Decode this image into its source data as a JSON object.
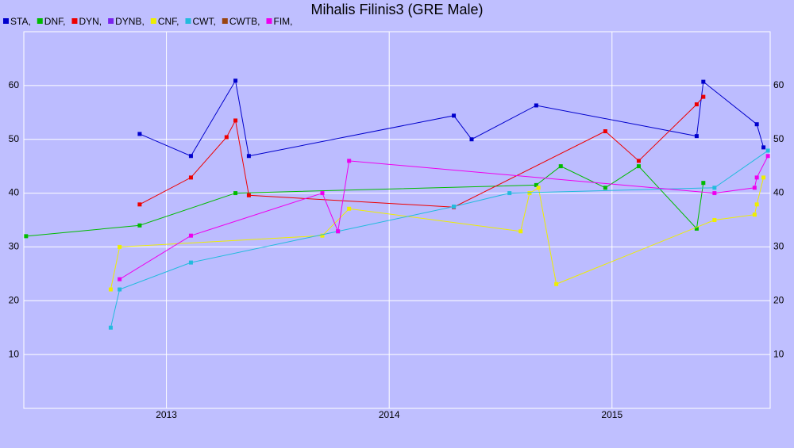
{
  "chart_data": {
    "type": "line",
    "title": "Mihalis Filinis3 (GRE Male)",
    "xlim": [
      2012.36,
      2015.71
    ],
    "xticks": [
      2013,
      2014,
      2015
    ],
    "ylim": [
      0,
      70
    ],
    "yticks": [
      10,
      20,
      30,
      40,
      50,
      60
    ],
    "grid": true,
    "series": [
      {
        "name": "STA,",
        "color": "#0000cc",
        "x": [
          2012.88,
          2013.11,
          2013.31,
          2013.37,
          2014.29,
          2014.37,
          2014.66,
          2015.38,
          2015.41,
          2015.65,
          2015.68
        ],
        "values": [
          51.0,
          46.9,
          60.9,
          46.9,
          54.4,
          50.0,
          56.3,
          50.6,
          60.7,
          52.8,
          48.5
        ]
      },
      {
        "name": "DNF,",
        "color": "#00bb00",
        "x": [
          2012.37,
          2012.88,
          2013.31,
          2014.66,
          2014.77,
          2014.97,
          2015.12,
          2015.38,
          2015.41
        ],
        "values": [
          32.0,
          34.0,
          40.0,
          41.5,
          45.0,
          41.0,
          45.0,
          33.4,
          41.9
        ]
      },
      {
        "name": "DYN,",
        "color": "#ee0000",
        "x": [
          2012.88,
          2013.11,
          2013.27,
          2013.31,
          2013.37,
          2014.29,
          2014.97,
          2015.12,
          2015.38,
          2015.41
        ],
        "values": [
          37.9,
          42.9,
          50.4,
          53.5,
          39.6,
          37.4,
          51.5,
          46.0,
          56.5,
          57.9
        ]
      },
      {
        "name": "DYNB,",
        "color": "#7a22ee",
        "x": [],
        "values": []
      },
      {
        "name": "CNF,",
        "color": "#eeee00",
        "x": [
          2012.75,
          2012.79,
          2013.7,
          2013.82,
          2014.59,
          2014.63,
          2014.67,
          2014.75,
          2015.46,
          2015.64,
          2015.65,
          2015.68
        ],
        "values": [
          22.1,
          30.0,
          32.1,
          37.1,
          32.9,
          40.0,
          41.0,
          23.1,
          35.0,
          36.0,
          37.9,
          42.9
        ]
      },
      {
        "name": "CWT,",
        "color": "#22bbdd",
        "x": [
          2012.75,
          2012.79,
          2013.11,
          2013.77,
          2014.29,
          2014.54,
          2015.46,
          2015.7
        ],
        "values": [
          15.0,
          22.1,
          27.1,
          32.9,
          37.5,
          40.0,
          41.0,
          47.9
        ]
      },
      {
        "name": "CWTB,",
        "color": "#994411",
        "x": [],
        "values": []
      },
      {
        "name": "FIM,",
        "color": "#ee00ee",
        "x": [
          2012.79,
          2013.11,
          2013.7,
          2013.77,
          2013.82,
          2015.46,
          2015.64,
          2015.65,
          2015.7
        ],
        "values": [
          24.0,
          32.1,
          40.0,
          32.9,
          46.0,
          40.0,
          41.0,
          42.9,
          46.9
        ]
      }
    ]
  }
}
